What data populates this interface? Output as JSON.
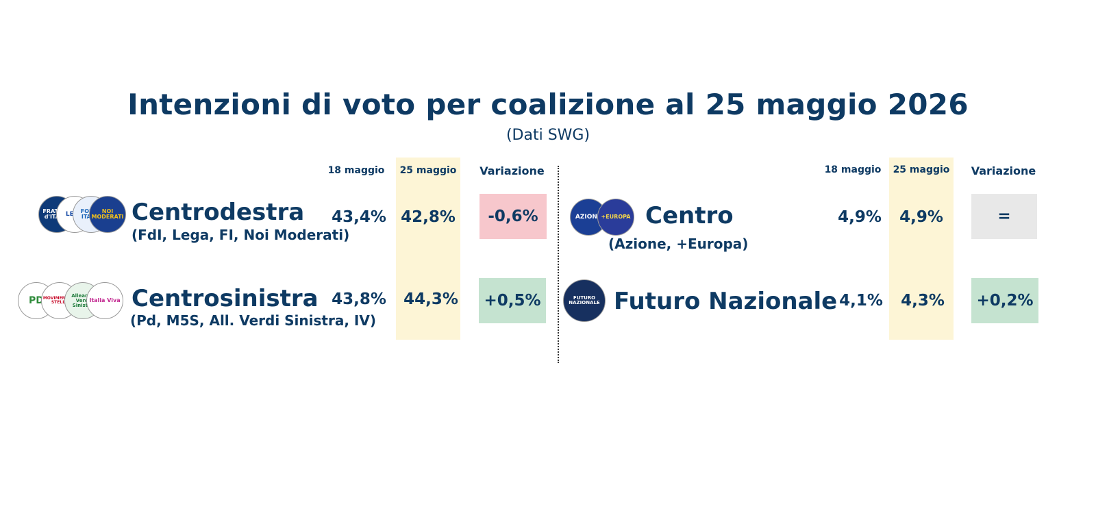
{
  "chart_data": {
    "type": "table",
    "title": "Intenzioni di voto per coalizione al 25 maggio 2026",
    "subtitle": "(Dati SWG)",
    "columns": [
      "18 maggio",
      "25 maggio",
      "Variazione"
    ],
    "rows": [
      {
        "name": "Centrodestra",
        "members": "(FdI, Lega, FI, Noi Moderati)",
        "prev": "43,4%",
        "curr": "42,8%",
        "change": "-0,6%",
        "trend": "down"
      },
      {
        "name": "Centrosinistra",
        "members": "(Pd, M5S, All. Verdi Sinistra, IV)",
        "prev": "43,8%",
        "curr": "44,3%",
        "change": "+0,5%",
        "trend": "up"
      },
      {
        "name": "Centro",
        "members": "(Azione, +Europa)",
        "prev": "4,9%",
        "curr": "4,9%",
        "change": "=",
        "trend": "flat"
      },
      {
        "name": "Futuro Nazionale",
        "members": "",
        "prev": "4,1%",
        "curr": "4,3%",
        "change": "+0,2%",
        "trend": "up"
      }
    ]
  },
  "logos": {
    "cdx": [
      "FRATELLI d'ITALIA",
      "LEGA",
      "FORZA ITALIA",
      "NOI MODERATI"
    ],
    "csx": [
      "PD",
      "MOVIMENTO 5 STELLE",
      "Alleanza Verdi Sinistra",
      "Italia Viva"
    ],
    "centro": [
      "AZIONE",
      "+EUROPA"
    ],
    "fn": [
      "FUTURO NAZIONALE"
    ]
  },
  "colors": {
    "text": "#0e3a63",
    "highlight": "#fdf5d6",
    "negative": "#f7c7cc",
    "positive": "#c5e3d0",
    "neutral": "#e8e8e8"
  }
}
